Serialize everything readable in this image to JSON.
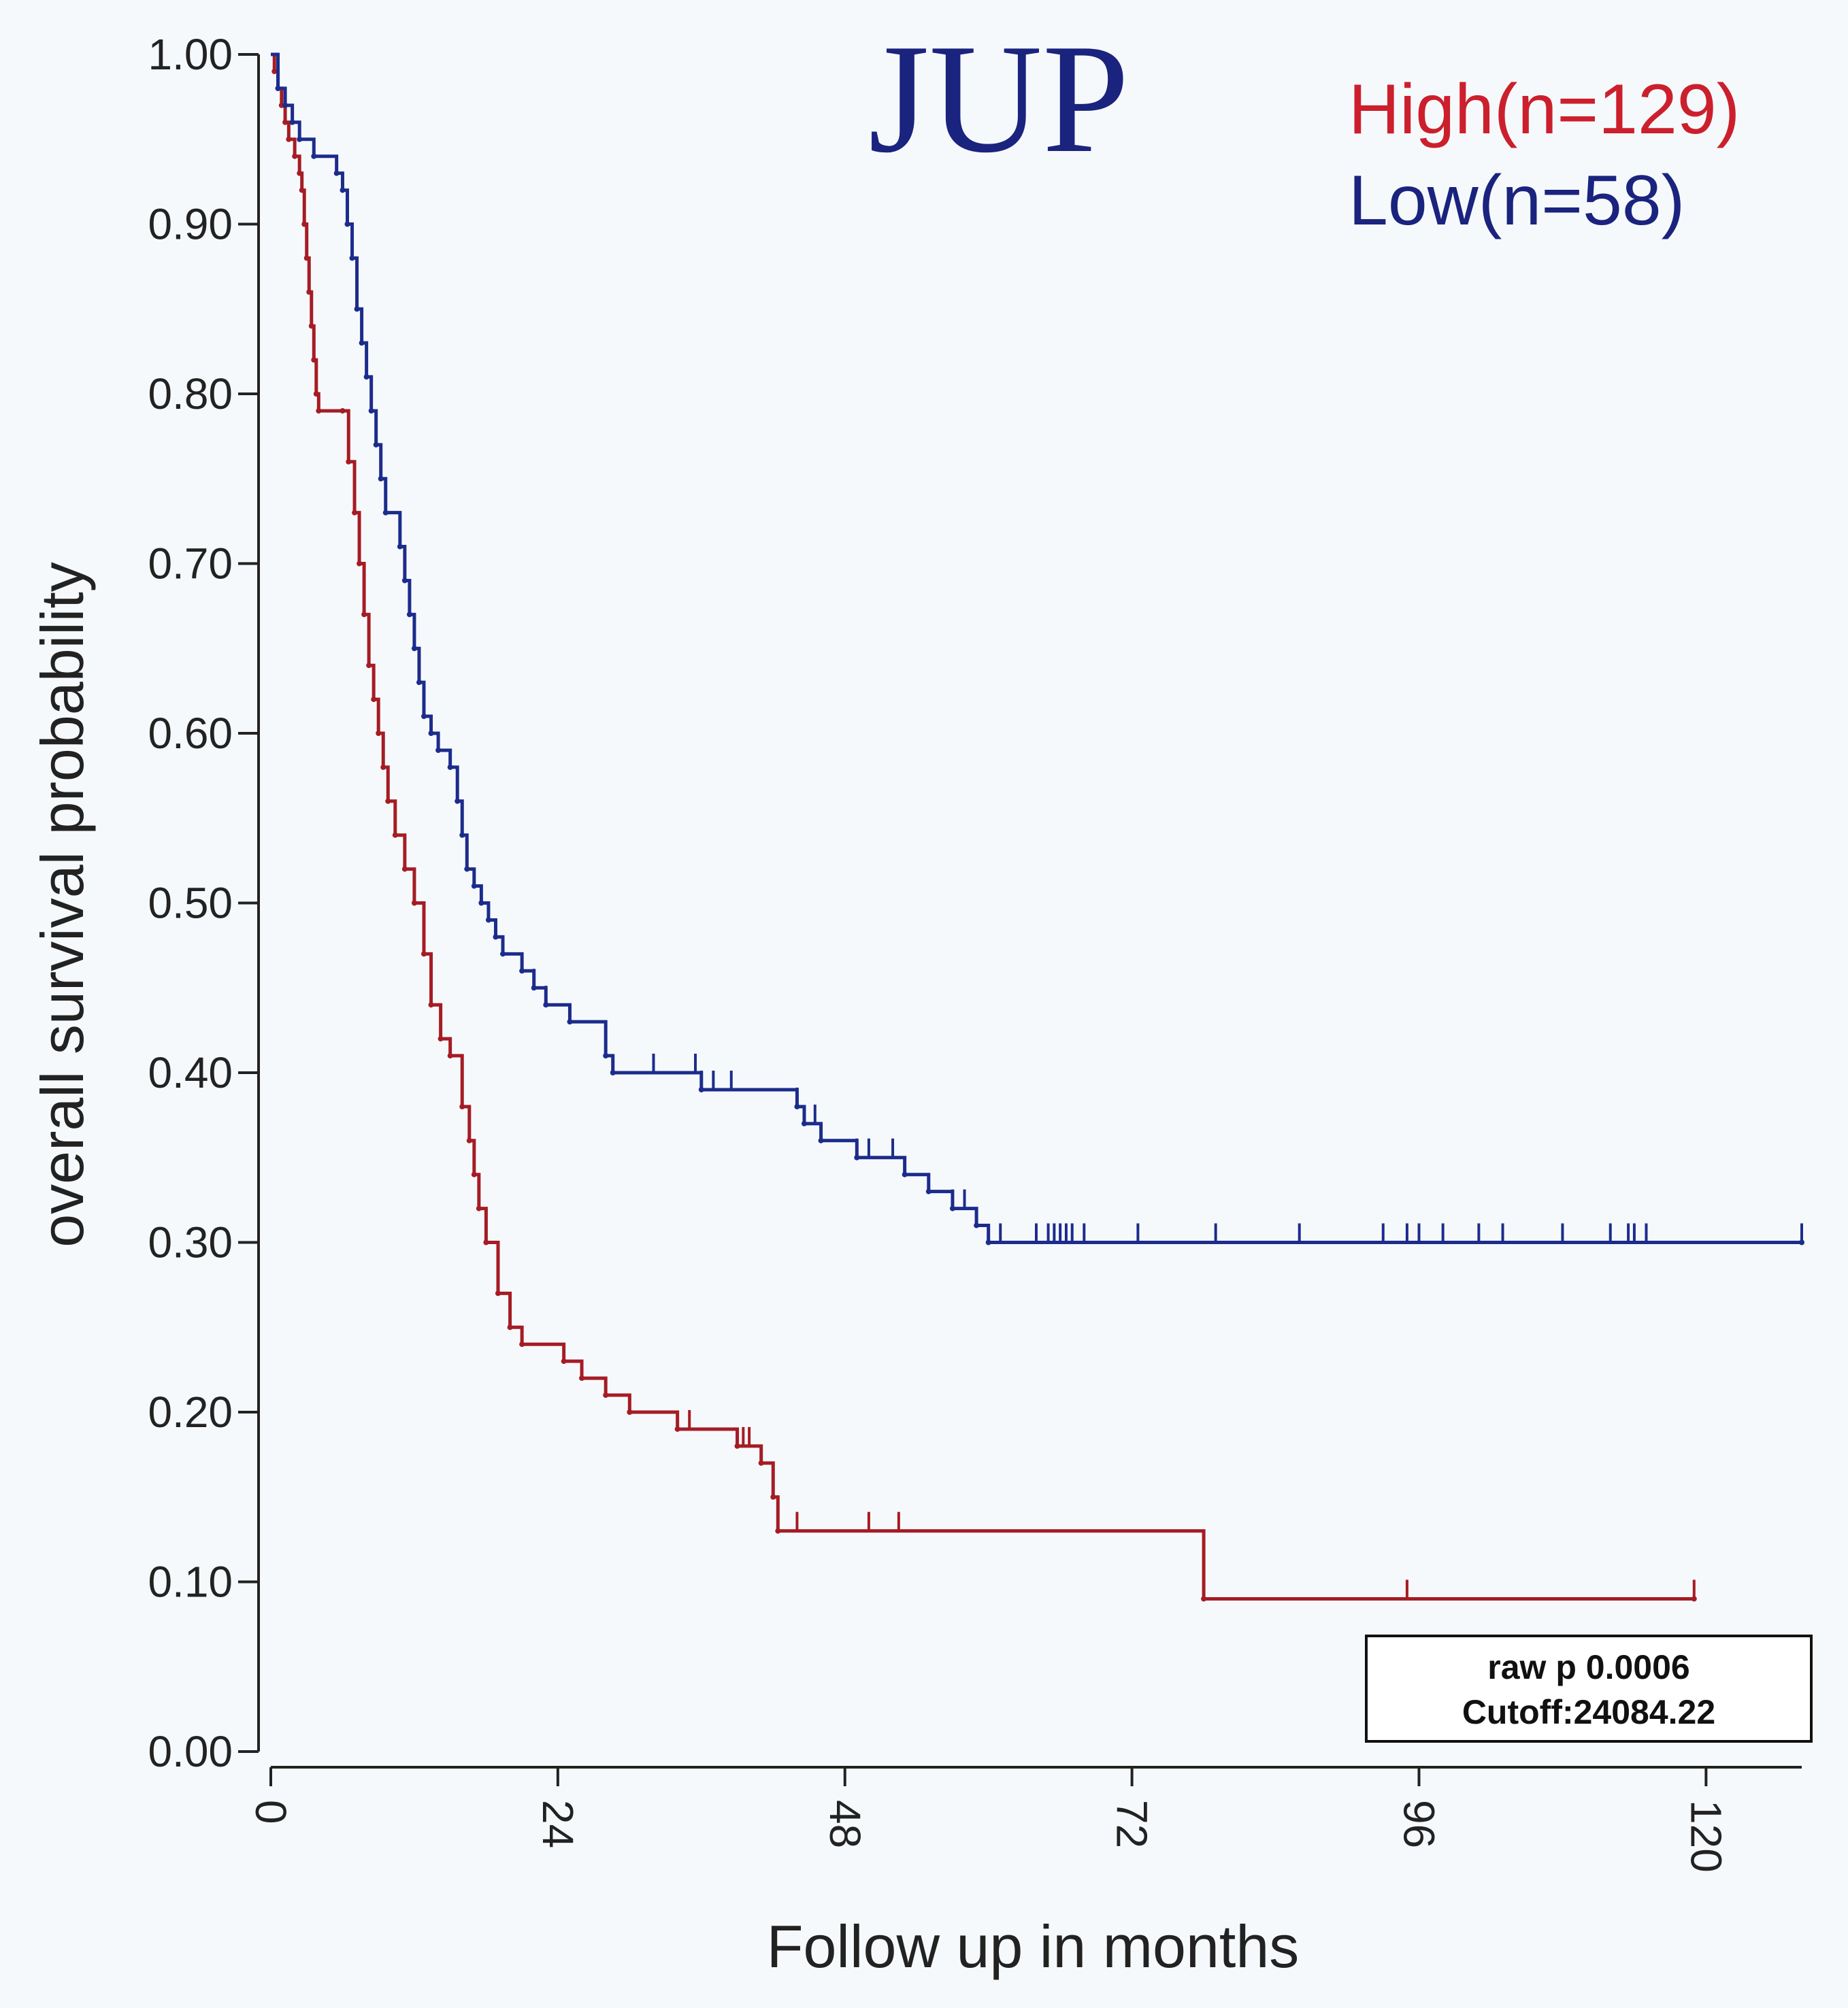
{
  "chart_data": {
    "type": "line",
    "subtype": "kaplan-meier",
    "title": "JUP",
    "xlabel": "Follow up in months",
    "ylabel": "overall survival probability",
    "xlim": [
      0,
      128
    ],
    "ylim": [
      0,
      1
    ],
    "x_ticks": [
      0,
      24,
      48,
      72,
      96,
      120
    ],
    "x_tick_labels": [
      "0",
      "24",
      "48",
      "72",
      "96",
      "120"
    ],
    "y_ticks": [
      0,
      0.1,
      0.2,
      0.3,
      0.4,
      0.5,
      0.6,
      0.7,
      0.8,
      0.9,
      1.0
    ],
    "y_tick_labels": [
      "0.00",
      "0.10",
      "0.20",
      "0.30",
      "0.40",
      "0.50",
      "0.60",
      "0.70",
      "0.80",
      "0.90",
      "1.00"
    ],
    "legend_position": "top-right",
    "annotation": [
      "raw p 0.0006",
      "Cutoff:24084.22"
    ],
    "series": [
      {
        "name": "High(n=129)",
        "color": "#a51c24",
        "steps": [
          [
            0,
            1.0
          ],
          [
            0.3,
            0.99
          ],
          [
            0.6,
            0.98
          ],
          [
            0.9,
            0.97
          ],
          [
            1.2,
            0.96
          ],
          [
            1.5,
            0.95
          ],
          [
            2.0,
            0.94
          ],
          [
            2.4,
            0.93
          ],
          [
            2.6,
            0.92
          ],
          [
            2.8,
            0.9
          ],
          [
            3.0,
            0.88
          ],
          [
            3.2,
            0.86
          ],
          [
            3.4,
            0.84
          ],
          [
            3.6,
            0.82
          ],
          [
            3.8,
            0.8
          ],
          [
            4.0,
            0.79
          ],
          [
            6.0,
            0.79
          ],
          [
            6.5,
            0.76
          ],
          [
            7.0,
            0.73
          ],
          [
            7.4,
            0.7
          ],
          [
            7.8,
            0.67
          ],
          [
            8.2,
            0.64
          ],
          [
            8.6,
            0.62
          ],
          [
            9.0,
            0.6
          ],
          [
            9.4,
            0.58
          ],
          [
            9.8,
            0.56
          ],
          [
            10.4,
            0.54
          ],
          [
            11.2,
            0.52
          ],
          [
            12.0,
            0.5
          ],
          [
            12.8,
            0.47
          ],
          [
            13.4,
            0.44
          ],
          [
            14.2,
            0.42
          ],
          [
            15.0,
            0.41
          ],
          [
            16.0,
            0.38
          ],
          [
            16.6,
            0.36
          ],
          [
            17.0,
            0.34
          ],
          [
            17.4,
            0.32
          ],
          [
            18.0,
            0.3
          ],
          [
            19.0,
            0.27
          ],
          [
            20.0,
            0.25
          ],
          [
            21.0,
            0.24
          ],
          [
            24.5,
            0.23
          ],
          [
            26.0,
            0.22
          ],
          [
            28.0,
            0.21
          ],
          [
            30.0,
            0.2
          ],
          [
            34.0,
            0.19
          ],
          [
            39.0,
            0.18
          ],
          [
            41.0,
            0.17
          ],
          [
            42.0,
            0.15
          ],
          [
            42.4,
            0.13
          ],
          [
            78.0,
            0.09
          ],
          [
            119.0,
            0.09
          ]
        ],
        "censor_x": [
          35.0,
          39.5,
          40.0,
          44.0,
          50.0,
          52.5,
          95.0,
          119.0
        ]
      },
      {
        "name": "Low(n=58)",
        "color": "#1c2c8c",
        "steps": [
          [
            0,
            1.0
          ],
          [
            0.6,
            0.98
          ],
          [
            1.2,
            0.97
          ],
          [
            1.8,
            0.96
          ],
          [
            2.4,
            0.95
          ],
          [
            3.6,
            0.94
          ],
          [
            5.5,
            0.93
          ],
          [
            6.0,
            0.92
          ],
          [
            6.4,
            0.9
          ],
          [
            6.8,
            0.88
          ],
          [
            7.2,
            0.85
          ],
          [
            7.6,
            0.83
          ],
          [
            8.0,
            0.81
          ],
          [
            8.4,
            0.79
          ],
          [
            8.8,
            0.77
          ],
          [
            9.2,
            0.75
          ],
          [
            9.6,
            0.73
          ],
          [
            10.8,
            0.71
          ],
          [
            11.2,
            0.69
          ],
          [
            11.6,
            0.67
          ],
          [
            12.0,
            0.65
          ],
          [
            12.4,
            0.63
          ],
          [
            12.8,
            0.61
          ],
          [
            13.4,
            0.6
          ],
          [
            14.0,
            0.59
          ],
          [
            15.0,
            0.58
          ],
          [
            15.6,
            0.56
          ],
          [
            16.0,
            0.54
          ],
          [
            16.4,
            0.52
          ],
          [
            17.0,
            0.51
          ],
          [
            17.6,
            0.5
          ],
          [
            18.2,
            0.49
          ],
          [
            18.8,
            0.48
          ],
          [
            19.4,
            0.47
          ],
          [
            21.0,
            0.46
          ],
          [
            22.0,
            0.45
          ],
          [
            23.0,
            0.44
          ],
          [
            25.0,
            0.43
          ],
          [
            28.0,
            0.41
          ],
          [
            28.6,
            0.4
          ],
          [
            36.0,
            0.39
          ],
          [
            44.0,
            0.38
          ],
          [
            44.6,
            0.37
          ],
          [
            46.0,
            0.36
          ],
          [
            49.0,
            0.35
          ],
          [
            53.0,
            0.34
          ],
          [
            55.0,
            0.33
          ],
          [
            57.0,
            0.32
          ],
          [
            59.0,
            0.31
          ],
          [
            60.0,
            0.3
          ],
          [
            128.0,
            0.3
          ]
        ],
        "censor_x": [
          22.0,
          23.0,
          32.0,
          35.5,
          36.0,
          37.0,
          38.5,
          44.0,
          45.5,
          49.0,
          50.0,
          52.0,
          57.0,
          58.0,
          61.0,
          64.0,
          65.0,
          65.5,
          66.0,
          66.5,
          67.0,
          68.0,
          72.5,
          79.0,
          86.0,
          93.0,
          95.0,
          96.0,
          98.0,
          101.0,
          103.0,
          108.0,
          112.0,
          113.5,
          114.0,
          115.0,
          128.0
        ]
      }
    ]
  }
}
